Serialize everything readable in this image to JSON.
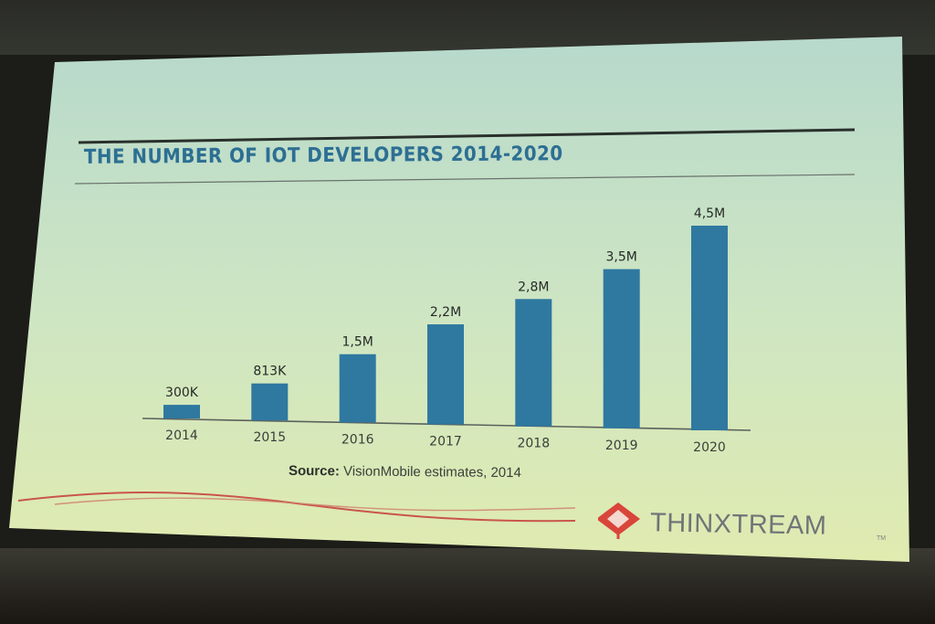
{
  "slide": {
    "source_label": "Source:",
    "source_text": "VisionMobile estimates, 2014",
    "brand_name": "THINXTREAM",
    "brand_tm": "TM",
    "brand_color": "#d9453a",
    "title_color": "#2d6f93",
    "bar_color": "#2f78a0"
  },
  "chart_data": {
    "type": "bar",
    "title": "THE NUMBER OF IOT DEVELOPERS 2014-2020",
    "categories": [
      "2014",
      "2015",
      "2016",
      "2017",
      "2018",
      "2019",
      "2020"
    ],
    "values": [
      0.3,
      0.813,
      1.5,
      2.2,
      2.8,
      3.5,
      4.5
    ],
    "value_labels": [
      "300K",
      "813K",
      "1,5M",
      "2,2M",
      "2,8M",
      "3,5M",
      "4,5M"
    ],
    "unit": "millions of developers",
    "xlabel": "",
    "ylabel": "",
    "ylim": [
      0,
      4.5
    ],
    "grid": false,
    "legend": "none"
  }
}
